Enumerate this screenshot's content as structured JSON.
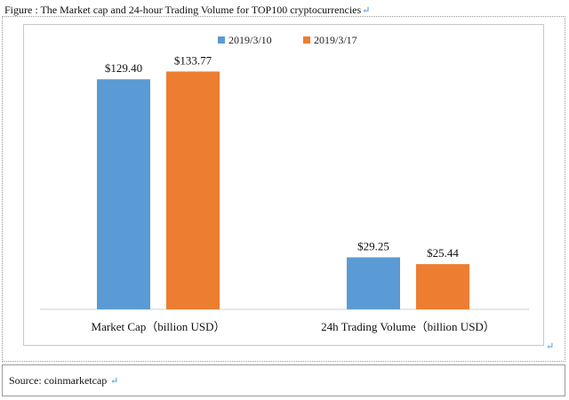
{
  "caption": "Figure : The Market cap and 24-hour Trading Volume for TOP100 cryptocurrencies",
  "source": "Source: coinmarketcap",
  "chart_data": {
    "type": "bar",
    "title": "",
    "categories": [
      "Market Cap（billion USD）",
      "24h Trading Volume（billion USD）"
    ],
    "series": [
      {
        "name": "2019/3/10",
        "values": [
          129.4,
          29.25
        ],
        "labels": [
          "$129.40",
          "$29.25"
        ],
        "color": "#5b9bd5"
      },
      {
        "name": "2019/3/17",
        "values": [
          133.77,
          25.44
        ],
        "labels": [
          "$133.77",
          "$25.44"
        ],
        "color": "#ed7d31"
      }
    ],
    "ylim": [
      0,
      145
    ],
    "grid": false,
    "legend": "top",
    "xlabel": "",
    "ylabel": ""
  }
}
